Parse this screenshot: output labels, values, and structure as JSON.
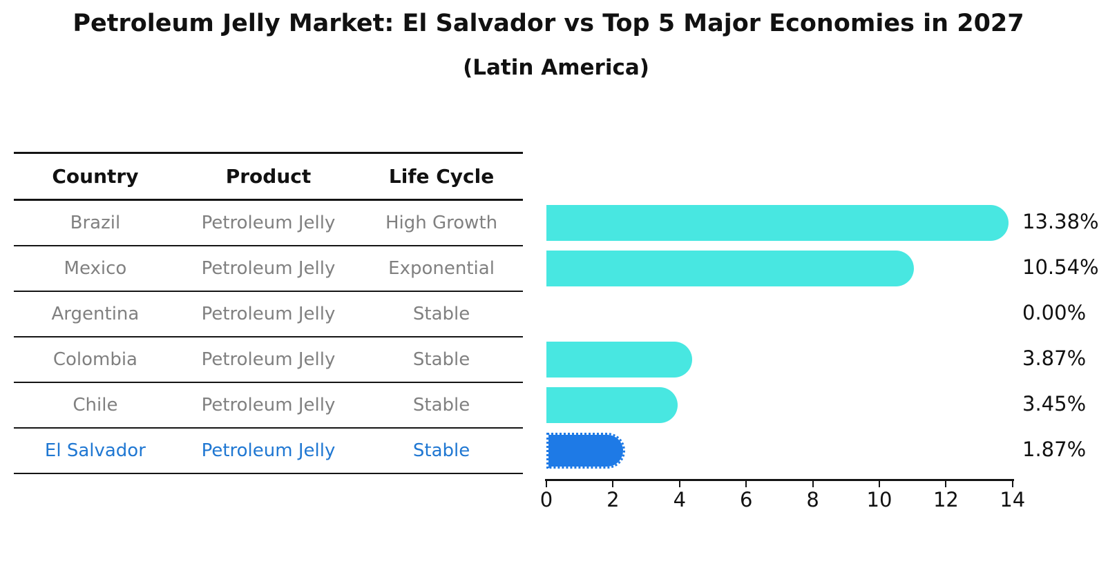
{
  "title": "Petroleum Jelly Market: El Salvador vs Top 5 Major Economies in 2027",
  "subtitle": "(Latin America)",
  "table": {
    "headers": [
      "Country",
      "Product",
      "Life Cycle"
    ],
    "rows": [
      {
        "country": "Brazil",
        "product": "Petroleum Jelly",
        "life_cycle": "High Growth",
        "highlighted": false
      },
      {
        "country": "Mexico",
        "product": "Petroleum Jelly",
        "life_cycle": "Exponential",
        "highlighted": false
      },
      {
        "country": "Argentina",
        "product": "Petroleum Jelly",
        "life_cycle": "Stable",
        "highlighted": false
      },
      {
        "country": "Colombia",
        "product": "Petroleum Jelly",
        "life_cycle": "Stable",
        "highlighted": false
      },
      {
        "country": "Chile",
        "product": "Petroleum Jelly",
        "life_cycle": "Stable",
        "highlighted": false
      },
      {
        "country": "El Salvador",
        "product": "Petroleum Jelly",
        "life_cycle": "Stable",
        "highlighted": true
      }
    ]
  },
  "chart_data": {
    "type": "bar",
    "orientation": "horizontal",
    "title": "Petroleum Jelly Market: El Salvador vs Top 5 Major Economies in 2027",
    "subtitle": "(Latin America)",
    "categories": [
      "Brazil",
      "Mexico",
      "Argentina",
      "Colombia",
      "Chile",
      "El Salvador"
    ],
    "values": [
      13.38,
      10.54,
      0.0,
      3.87,
      3.45,
      1.87
    ],
    "value_labels": [
      "13.38%",
      "10.54%",
      "0.00%",
      "3.87%",
      "3.45%",
      "1.87%"
    ],
    "xlim": [
      0,
      14
    ],
    "x_ticks": [
      0,
      2,
      4,
      6,
      8,
      10,
      12,
      14
    ],
    "highlight_index": 5,
    "grid": false,
    "legend": false,
    "colors": {
      "bar": "#48E7E1",
      "highlight_bar": "#1E7AE6",
      "highlight_text": "#1F77D2",
      "muted_text": "#808080",
      "axis_and_titles": "#111111"
    }
  }
}
